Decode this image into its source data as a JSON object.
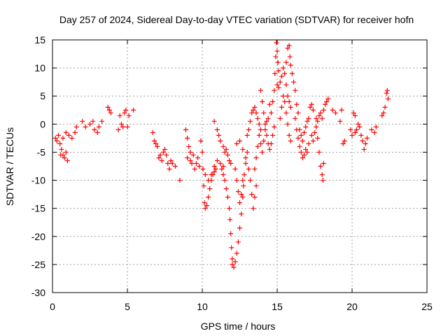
{
  "chart_data": {
    "type": "scatter",
    "title": "Day 257 of 2024, Sidereal Day-to-day VTEC variation (SDTVAR) for receiver hofn",
    "xlabel": "GPS time / hours",
    "ylabel": "SDTVAR / TECUs",
    "xlim": [
      0,
      25
    ],
    "ylim": [
      -30,
      15
    ],
    "xticks": [
      0,
      5,
      10,
      15,
      20,
      25
    ],
    "yticks": [
      -30,
      -25,
      -20,
      -15,
      -10,
      -5,
      0,
      5,
      10,
      15
    ],
    "grid": true,
    "marker": "+",
    "marker_color": "#ff0000",
    "series": [
      {
        "name": "SDTVAR",
        "points": [
          [
            0.2,
            -2.5
          ],
          [
            0.3,
            -3.0
          ],
          [
            0.4,
            -2.0
          ],
          [
            0.5,
            -3.5
          ],
          [
            0.55,
            -5.5
          ],
          [
            0.6,
            -4.5
          ],
          [
            0.7,
            -5.5
          ],
          [
            0.8,
            -6.0
          ],
          [
            0.9,
            -5.0
          ],
          [
            1.0,
            -6.5
          ],
          [
            0.7,
            -2.5
          ],
          [
            0.9,
            -1.5
          ],
          [
            1.1,
            -2.0
          ],
          [
            1.3,
            -2.5
          ],
          [
            1.5,
            -1.5
          ],
          [
            1.6,
            -0.5
          ],
          [
            2.0,
            0.5
          ],
          [
            2.2,
            -0.5
          ],
          [
            2.5,
            0.0
          ],
          [
            2.7,
            0.5
          ],
          [
            2.8,
            -1.0
          ],
          [
            3.0,
            -1.5
          ],
          [
            3.1,
            -0.5
          ],
          [
            3.3,
            0.5
          ],
          [
            3.7,
            3.0
          ],
          [
            3.8,
            2.5
          ],
          [
            3.9,
            2.0
          ],
          [
            4.4,
            -1.0
          ],
          [
            4.5,
            1.5
          ],
          [
            4.6,
            0.0
          ],
          [
            4.7,
            -0.5
          ],
          [
            4.8,
            2.0
          ],
          [
            4.9,
            2.5
          ],
          [
            5.0,
            -0.5
          ],
          [
            5.1,
            1.5
          ],
          [
            5.4,
            2.5
          ],
          [
            6.7,
            -1.5
          ],
          [
            6.8,
            -3.0
          ],
          [
            6.9,
            -3.5
          ],
          [
            7.0,
            -4.0
          ],
          [
            7.1,
            -6.0
          ],
          [
            7.2,
            -5.5
          ],
          [
            7.3,
            -6.5
          ],
          [
            7.4,
            -5.0
          ],
          [
            7.5,
            -4.5
          ],
          [
            7.6,
            -5.5
          ],
          [
            7.7,
            -7.0
          ],
          [
            7.8,
            -8.0
          ],
          [
            7.9,
            -6.5
          ],
          [
            8.0,
            -7.0
          ],
          [
            8.2,
            -7.5
          ],
          [
            8.5,
            -10.0
          ],
          [
            8.9,
            -1.0
          ],
          [
            9.0,
            -2.5
          ],
          [
            9.1,
            -4.0
          ],
          [
            9.2,
            -5.0
          ],
          [
            9.0,
            -6.0
          ],
          [
            9.2,
            -6.5
          ],
          [
            9.3,
            -7.0
          ],
          [
            9.4,
            -5.5
          ],
          [
            9.5,
            -8.0
          ],
          [
            9.6,
            -7.0
          ],
          [
            9.7,
            -6.0
          ],
          [
            9.8,
            -7.5
          ],
          [
            9.9,
            -3.0
          ],
          [
            10.0,
            -5.0
          ],
          [
            10.05,
            -8.0
          ],
          [
            10.1,
            -11.0
          ],
          [
            10.15,
            -14.0
          ],
          [
            10.2,
            -15.0
          ],
          [
            10.3,
            -14.5
          ],
          [
            10.4,
            -13.0
          ],
          [
            10.5,
            -11.5
          ],
          [
            10.6,
            -10.0
          ],
          [
            10.7,
            -9.0
          ],
          [
            10.8,
            -8.5
          ],
          [
            10.9,
            -8.0
          ],
          [
            10.2,
            -9.0
          ],
          [
            10.4,
            -10.0
          ],
          [
            10.6,
            -9.0
          ],
          [
            10.8,
            -7.5
          ],
          [
            11.0,
            -6.5
          ],
          [
            11.2,
            -7.0
          ],
          [
            11.4,
            -7.5
          ],
          [
            10.8,
            0.5
          ],
          [
            11.0,
            -1.0
          ],
          [
            11.1,
            -2.0
          ],
          [
            11.2,
            -3.0
          ],
          [
            11.4,
            -4.0
          ],
          [
            11.5,
            -5.0
          ],
          [
            11.6,
            -4.5
          ],
          [
            11.7,
            -5.5
          ],
          [
            11.8,
            -6.5
          ],
          [
            11.9,
            -7.0
          ],
          [
            11.3,
            -8.0
          ],
          [
            11.4,
            -9.0
          ],
          [
            11.5,
            -10.0
          ],
          [
            11.6,
            -11.5
          ],
          [
            11.7,
            -13.0
          ],
          [
            11.8,
            -15.0
          ],
          [
            11.85,
            -17.0
          ],
          [
            11.9,
            -19.5
          ],
          [
            11.95,
            -22.0
          ],
          [
            12.0,
            -24.0
          ],
          [
            12.0,
            -25.0
          ],
          [
            12.1,
            -25.5
          ],
          [
            12.2,
            -24.5
          ],
          [
            12.3,
            -23.0
          ],
          [
            12.4,
            -21.0
          ],
          [
            12.5,
            -18.5
          ],
          [
            12.6,
            -16.0
          ],
          [
            12.7,
            -13.0
          ],
          [
            12.75,
            -11.0
          ],
          [
            12.8,
            -9.0
          ],
          [
            12.9,
            -7.0
          ],
          [
            13.0,
            -5.0
          ],
          [
            12.2,
            -8.0
          ],
          [
            12.3,
            -10.0
          ],
          [
            12.4,
            -12.0
          ],
          [
            12.5,
            -14.0
          ],
          [
            12.6,
            -12.5
          ],
          [
            12.7,
            -10.0
          ],
          [
            12.3,
            -3.5
          ],
          [
            12.5,
            -3.0
          ],
          [
            12.7,
            -4.5
          ],
          [
            12.9,
            -6.0
          ],
          [
            13.1,
            -8.0
          ],
          [
            13.2,
            -10.0
          ],
          [
            13.3,
            -12.5
          ],
          [
            13.4,
            -15.0
          ],
          [
            13.5,
            -13.0
          ],
          [
            13.6,
            -11.0
          ],
          [
            13.0,
            -2.0
          ],
          [
            13.1,
            -1.0
          ],
          [
            13.2,
            0.5
          ],
          [
            13.3,
            2.0
          ],
          [
            13.4,
            2.5
          ],
          [
            13.5,
            3.0
          ],
          [
            13.6,
            2.0
          ],
          [
            13.7,
            1.0
          ],
          [
            13.8,
            0.0
          ],
          [
            13.9,
            -1.0
          ],
          [
            13.5,
            -8.0
          ],
          [
            13.6,
            -6.0
          ],
          [
            13.7,
            -4.0
          ],
          [
            13.8,
            -2.0
          ],
          [
            13.9,
            -3.5
          ],
          [
            14.0,
            -5.0
          ],
          [
            14.1,
            -3.0
          ],
          [
            14.2,
            -1.0
          ],
          [
            14.3,
            0.5
          ],
          [
            14.4,
            1.0
          ],
          [
            13.9,
            6.0
          ],
          [
            14.0,
            4.0
          ],
          [
            14.1,
            2.0
          ],
          [
            14.2,
            0.0
          ],
          [
            14.3,
            -2.0
          ],
          [
            14.4,
            -3.5
          ],
          [
            14.5,
            -4.5
          ],
          [
            14.6,
            -3.5
          ],
          [
            14.7,
            -2.0
          ],
          [
            14.8,
            -0.5
          ],
          [
            14.5,
            3.5
          ],
          [
            14.6,
            2.0
          ],
          [
            14.7,
            4.0
          ],
          [
            14.8,
            6.0
          ],
          [
            14.85,
            9.0
          ],
          [
            14.9,
            12.0
          ],
          [
            14.95,
            14.5
          ],
          [
            15.0,
            13.0
          ],
          [
            15.05,
            11.0
          ],
          [
            15.1,
            9.5
          ],
          [
            15.0,
            7.0
          ],
          [
            15.1,
            6.5
          ],
          [
            15.2,
            7.5
          ],
          [
            15.3,
            8.5
          ],
          [
            15.4,
            10.0
          ],
          [
            15.5,
            9.0
          ],
          [
            15.6,
            7.0
          ],
          [
            15.7,
            5.0
          ],
          [
            15.8,
            4.0
          ],
          [
            15.9,
            3.0
          ],
          [
            15.2,
            1.0
          ],
          [
            15.3,
            3.0
          ],
          [
            15.4,
            5.0
          ],
          [
            15.5,
            4.0
          ],
          [
            15.6,
            2.0
          ],
          [
            15.7,
            0.0
          ],
          [
            15.8,
            -2.0
          ],
          [
            15.9,
            -3.0
          ],
          [
            15.6,
            11.0
          ],
          [
            15.7,
            13.5
          ],
          [
            15.8,
            14.0
          ],
          [
            15.85,
            12.0
          ],
          [
            15.9,
            10.5
          ],
          [
            16.0,
            9.0
          ],
          [
            16.1,
            7.5
          ],
          [
            16.2,
            6.0
          ],
          [
            16.3,
            3.5
          ],
          [
            16.4,
            2.0
          ],
          [
            16.2,
            1.0
          ],
          [
            16.3,
            -1.0
          ],
          [
            16.4,
            -2.5
          ],
          [
            16.5,
            -4.0
          ],
          [
            16.6,
            -5.0
          ],
          [
            16.7,
            -6.0
          ],
          [
            16.8,
            -5.5
          ],
          [
            16.9,
            -4.5
          ],
          [
            17.0,
            -5.0
          ],
          [
            17.1,
            -3.5
          ],
          [
            16.5,
            -1.0
          ],
          [
            16.6,
            -2.0
          ],
          [
            16.7,
            -3.0
          ],
          [
            16.8,
            -1.5
          ],
          [
            16.9,
            -0.5
          ],
          [
            17.0,
            0.5
          ],
          [
            17.1,
            1.0
          ],
          [
            17.2,
            3.0
          ],
          [
            17.3,
            3.5
          ],
          [
            17.4,
            2.5
          ],
          [
            17.3,
            -2.0
          ],
          [
            17.4,
            -3.0
          ],
          [
            17.5,
            -1.5
          ],
          [
            17.6,
            -0.5
          ],
          [
            17.7,
            -2.5
          ],
          [
            17.8,
            -5.0
          ],
          [
            17.9,
            -7.5
          ],
          [
            18.0,
            -9.0
          ],
          [
            18.05,
            -10.0
          ],
          [
            18.1,
            -7.0
          ],
          [
            17.6,
            1.0
          ],
          [
            17.7,
            0.5
          ],
          [
            17.8,
            1.5
          ],
          [
            17.9,
            2.0
          ],
          [
            18.0,
            1.0
          ],
          [
            18.1,
            2.5
          ],
          [
            18.2,
            3.5
          ],
          [
            18.3,
            4.0
          ],
          [
            18.4,
            4.5
          ],
          [
            18.7,
            2.5
          ],
          [
            18.9,
            2.0
          ],
          [
            19.2,
            0.5
          ],
          [
            19.3,
            2.5
          ],
          [
            19.4,
            -3.5
          ],
          [
            19.5,
            -3.0
          ],
          [
            19.9,
            -1.0
          ],
          [
            20.0,
            -2.0
          ],
          [
            20.1,
            2.0
          ],
          [
            20.2,
            1.5
          ],
          [
            20.2,
            -1.5
          ],
          [
            20.3,
            -1.0
          ],
          [
            20.4,
            0.0
          ],
          [
            20.5,
            -0.5
          ],
          [
            20.6,
            -2.0
          ],
          [
            20.7,
            -3.0
          ],
          [
            20.8,
            -4.5
          ],
          [
            20.9,
            -3.5
          ],
          [
            21.0,
            -2.5
          ],
          [
            21.3,
            -1.0
          ],
          [
            21.5,
            -1.5
          ],
          [
            21.6,
            -0.5
          ],
          [
            22.0,
            1.5
          ],
          [
            22.1,
            2.0
          ],
          [
            22.2,
            3.0
          ],
          [
            22.3,
            5.5
          ],
          [
            22.35,
            6.0
          ],
          [
            22.4,
            4.5
          ]
        ]
      }
    ]
  }
}
